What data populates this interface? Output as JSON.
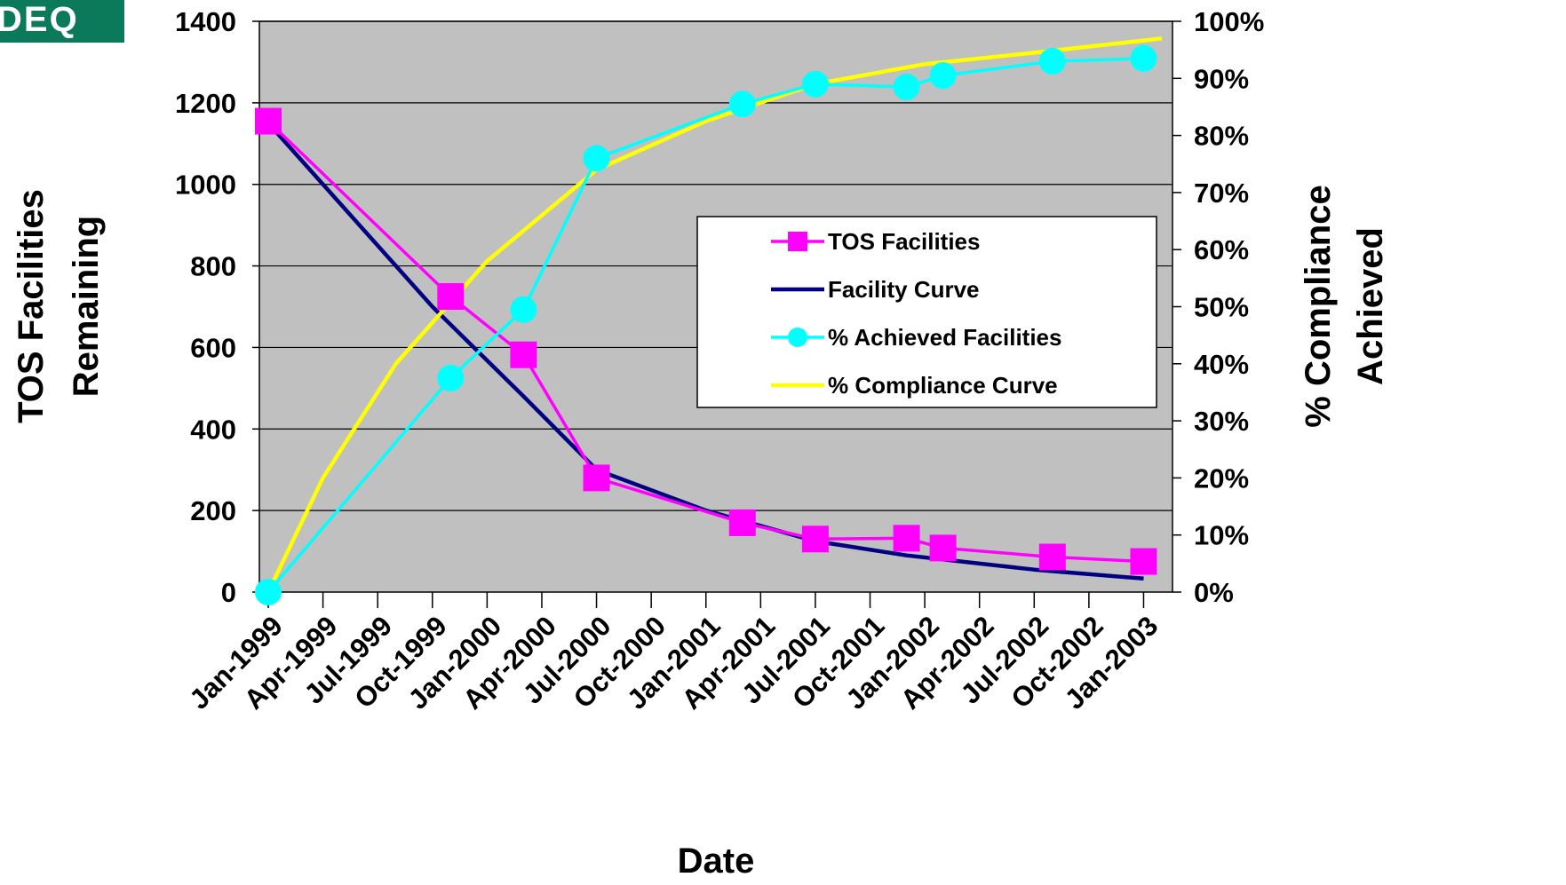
{
  "logo": {
    "text": "DEQ",
    "color": "#0a7a5a"
  },
  "chart_data": {
    "type": "line",
    "title": "",
    "xlabel": "Date",
    "ylabel_left": "TOS Facilities Remaining",
    "ylabel_right": "% Compliance Achieved",
    "x_ticks": [
      "Jan-1999",
      "Apr-1999",
      "Jul-1999",
      "Oct-1999",
      "Jan-2000",
      "Apr-2000",
      "Jul-2000",
      "Oct-2000",
      "Jan-2001",
      "Apr-2001",
      "Jul-2001",
      "Oct-2001",
      "Jan-2002",
      "Apr-2002",
      "Jul-2002",
      "Oct-2002",
      "Jan-2003"
    ],
    "xlim": [
      "Jan-1999",
      "Feb-2003"
    ],
    "ylim_left": [
      0,
      1400
    ],
    "left_ticks": [
      0,
      200,
      400,
      600,
      800,
      1000,
      1200,
      1400
    ],
    "ylim_right": [
      0,
      100
    ],
    "right_ticks": [
      "0%",
      "10%",
      "20%",
      "30%",
      "40%",
      "50%",
      "60%",
      "70%",
      "80%",
      "90%",
      "100%"
    ],
    "plot_background": "#c0c0c0",
    "grid": "horizontal",
    "legend_position": "center-right",
    "series": [
      {
        "name": "TOS Facilities",
        "axis": "left",
        "color": "#ff00ff",
        "marker": "square",
        "points": [
          {
            "x": "Jan-1999",
            "y": 1155
          },
          {
            "x": "Nov-1999",
            "y": 725
          },
          {
            "x": "Mar-2000",
            "y": 582
          },
          {
            "x": "Jul-2000",
            "y": 280
          },
          {
            "x": "Mar-2001",
            "y": 170
          },
          {
            "x": "Jul-2001",
            "y": 130
          },
          {
            "x": "Dec-2001",
            "y": 132
          },
          {
            "x": "Feb-2002",
            "y": 108
          },
          {
            "x": "Aug-2002",
            "y": 86
          },
          {
            "x": "Jan-2003",
            "y": 75
          }
        ]
      },
      {
        "name": "Facility Curve",
        "axis": "left",
        "color": "#000080",
        "marker": "none",
        "points": [
          {
            "x": "Jan-1999",
            "y": 1150
          },
          {
            "x": "Oct-1999",
            "y": 700
          },
          {
            "x": "Mar-2000",
            "y": 480
          },
          {
            "x": "Jul-2000",
            "y": 300
          },
          {
            "x": "Jan-2001",
            "y": 200
          },
          {
            "x": "Jul-2001",
            "y": 125
          },
          {
            "x": "Dec-2001",
            "y": 90
          },
          {
            "x": "Jul-2002",
            "y": 55
          },
          {
            "x": "Jan-2003",
            "y": 33
          }
        ]
      },
      {
        "name": "% Achieved Facilities",
        "axis": "right",
        "color": "#00ffff",
        "marker": "circle",
        "points": [
          {
            "x": "Jan-1999",
            "y": 0
          },
          {
            "x": "Nov-1999",
            "y": 37.5
          },
          {
            "x": "Mar-2000",
            "y": 49.5
          },
          {
            "x": "Jul-2000",
            "y": 76
          },
          {
            "x": "Mar-2001",
            "y": 85.5
          },
          {
            "x": "Jul-2001",
            "y": 89
          },
          {
            "x": "Dec-2001",
            "y": 88.5
          },
          {
            "x": "Feb-2002",
            "y": 90.5
          },
          {
            "x": "Aug-2002",
            "y": 93
          },
          {
            "x": "Jan-2003",
            "y": 93.5
          }
        ]
      },
      {
        "name": "% Compliance Curve",
        "axis": "right",
        "color": "#ffff00",
        "marker": "none",
        "points": [
          {
            "x": "Jan-1999",
            "y": 0
          },
          {
            "x": "Apr-1999",
            "y": 20
          },
          {
            "x": "Aug-1999",
            "y": 40
          },
          {
            "x": "Jan-2000",
            "y": 58
          },
          {
            "x": "Jul-2000",
            "y": 74
          },
          {
            "x": "Jan-2001",
            "y": 82.5
          },
          {
            "x": "Jul-2001",
            "y": 89
          },
          {
            "x": "Jan-2002",
            "y": 92.5
          },
          {
            "x": "Jul-2002",
            "y": 94.5
          },
          {
            "x": "Feb-2003",
            "y": 97
          }
        ]
      }
    ]
  }
}
